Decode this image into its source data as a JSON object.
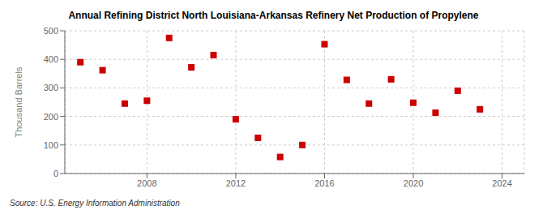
{
  "chart_data": {
    "type": "scatter",
    "title": "Annual Refining District North Louisiana-Arkansas Refinery Net Production of Propylene",
    "y_label": "Thousand Barrels",
    "annotations": [
      "Source: U.S. Energy Information Administration"
    ],
    "x": [
      2005,
      2006,
      2007,
      2008,
      2009,
      2010,
      2011,
      2012,
      2013,
      2014,
      2015,
      2016,
      2017,
      2018,
      2019,
      2020,
      2021,
      2022,
      2023
    ],
    "values": [
      390,
      362,
      245,
      255,
      475,
      372,
      415,
      190,
      125,
      58,
      100,
      453,
      328,
      245,
      330,
      248,
      213,
      290,
      225
    ],
    "color": "#cc0000",
    "marker": "square",
    "xlim": [
      2004.3,
      2025.0
    ],
    "xticks": [
      2008,
      2012,
      2016,
      2020,
      2024
    ],
    "ylim": [
      0,
      500
    ],
    "yticks": [
      0,
      100,
      200,
      300,
      400,
      500
    ],
    "grid": true
  }
}
